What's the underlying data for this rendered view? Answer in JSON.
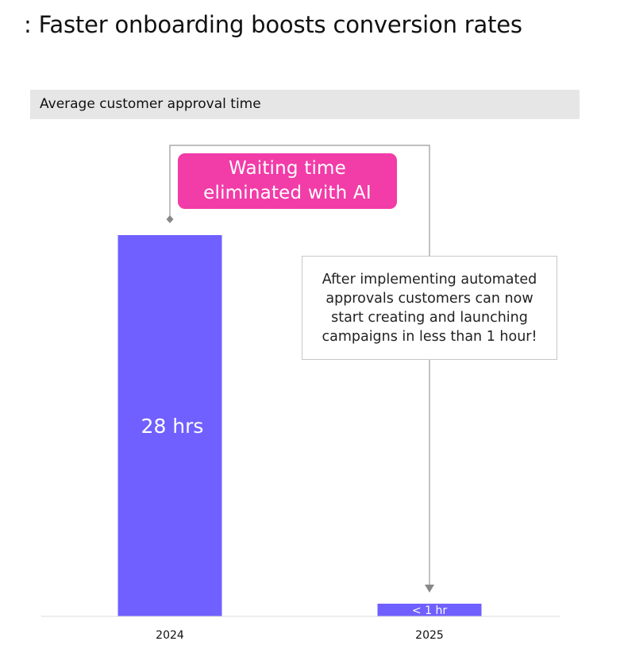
{
  "header": {
    "title": ": Faster onboarding boosts conversion rates"
  },
  "chart_data": {
    "type": "bar",
    "title": "Average customer approval time",
    "categories": [
      "2024",
      "2025"
    ],
    "values": [
      28,
      0.5
    ],
    "data_labels": [
      "28 hrs",
      "< 1 hr"
    ],
    "ylim": [
      0,
      28
    ],
    "grid": false,
    "bar_color": "#7060ff",
    "annotations": {
      "callout": "Waiting time eliminated with AI",
      "callout_color": "#f23ca8",
      "note": "After implementing automated approvals customers can now start creating and launching campaigns in less than 1 hour!"
    }
  }
}
